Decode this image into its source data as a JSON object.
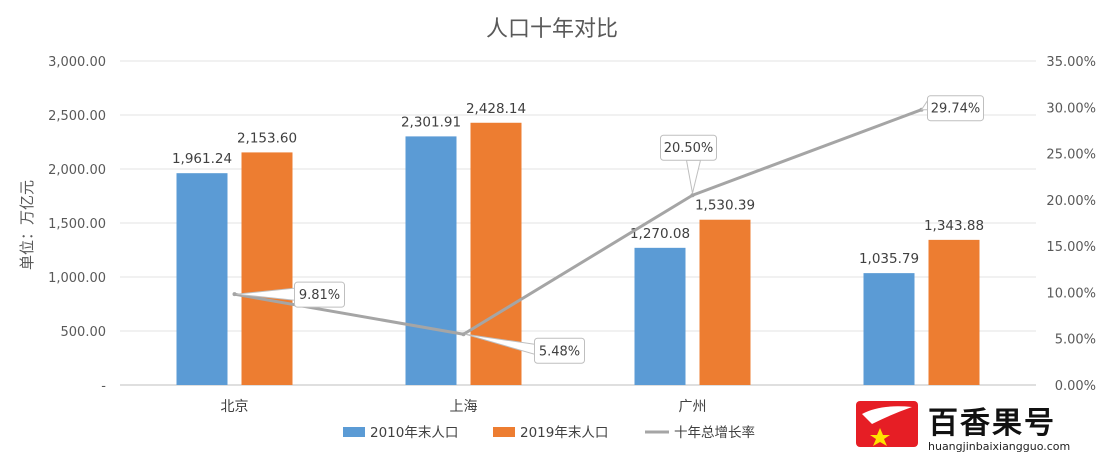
{
  "chart_data": {
    "type": "bar",
    "title": "人口十年对比",
    "ylabel": "单位：万亿元",
    "categories": [
      "北京",
      "上海",
      "广州",
      ""
    ],
    "ylim": [
      0,
      3000
    ],
    "yticks": [
      "-",
      "500.00",
      "1,000.00",
      "1,500.00",
      "2,000.00",
      "2,500.00",
      "3,000.00"
    ],
    "y2lim": [
      0,
      35
    ],
    "y2ticks": [
      "0.00%",
      "5.00%",
      "10.00%",
      "15.00%",
      "20.00%",
      "25.00%",
      "30.00%",
      "35.00%"
    ],
    "series": [
      {
        "name": "2010年末人口",
        "type": "bar",
        "color": "#5B9BD5",
        "values": [
          1961.24,
          2301.91,
          1270.08,
          1035.79
        ],
        "labels": [
          "1,961.24",
          "2,301.91",
          "1,270.08",
          "1,035.79"
        ]
      },
      {
        "name": "2019年末人口",
        "type": "bar",
        "color": "#ED7D31",
        "values": [
          2153.6,
          2428.14,
          1530.39,
          1343.88
        ],
        "labels": [
          "2,153.60",
          "2,428.14",
          "1,530.39",
          "1,343.88"
        ]
      },
      {
        "name": "十年总增长率",
        "type": "line",
        "axis": "secondary",
        "color": "#A5A5A5",
        "values": [
          9.81,
          5.48,
          20.5,
          29.74
        ],
        "labels": [
          "9.81%",
          "5.48%",
          "20.50%",
          "29.74%"
        ]
      }
    ],
    "legend": "bottom",
    "grid": true
  },
  "watermark": {
    "name": "百香果号",
    "url": "huangjinbaixiangguo.com"
  }
}
